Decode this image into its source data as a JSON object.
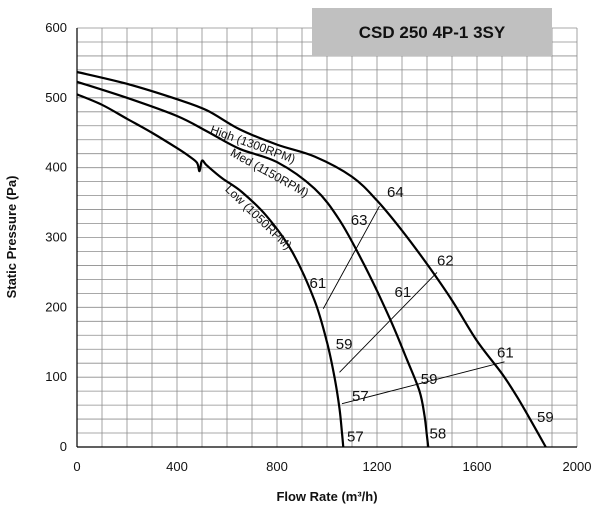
{
  "chart_data": {
    "type": "line",
    "title": "CSD 250 4P-1 3SY",
    "xlabel": "Flow Rate (m³/h)",
    "ylabel": "Static Pressure (Pa)",
    "xlim": [
      0,
      2000
    ],
    "ylim": [
      0,
      600
    ],
    "x_ticks": [
      "0",
      "400",
      "800",
      "1200",
      "1600",
      "2000"
    ],
    "y_ticks": [
      "0",
      "100",
      "200",
      "300",
      "400",
      "500",
      "600"
    ],
    "grid": true,
    "title_box_color": "#c0c0c0",
    "series": [
      {
        "name": "High (1300RPM)",
        "x": [
          0,
          200,
          400,
          520,
          650,
          800,
          950,
          1100,
          1200,
          1300,
          1400,
          1500,
          1600,
          1700,
          1760,
          1820,
          1875
        ],
        "y": [
          537,
          520,
          498,
          482,
          455,
          433,
          416,
          387,
          353,
          310,
          262,
          210,
          152,
          105,
          72,
          35,
          0
        ]
      },
      {
        "name": "Med (1150RPM)",
        "x": [
          0,
          200,
          400,
          520,
          650,
          800,
          950,
          1050,
          1150,
          1250,
          1320,
          1370,
          1390,
          1400,
          1405
        ],
        "y": [
          523,
          500,
          474,
          452,
          427,
          408,
          370,
          325,
          260,
          185,
          125,
          80,
          45,
          15,
          0
        ]
      },
      {
        "name": "Low (1050RPM)",
        "x": [
          0,
          100,
          200,
          300,
          400,
          450,
          480,
          490,
          500,
          520,
          580,
          660,
          760,
          860,
          950,
          1000,
          1030,
          1050,
          1060,
          1065
        ],
        "y": [
          505,
          490,
          470,
          450,
          428,
          416,
          407,
          395,
          410,
          403,
          385,
          365,
          330,
          280,
          210,
          150,
          100,
          55,
          20,
          0
        ]
      }
    ],
    "iso_lines": [
      {
        "x": [
          985,
          1210
        ],
        "y": [
          198,
          345
        ]
      },
      {
        "x": [
          1050,
          1440
        ],
        "y": [
          107,
          250
        ]
      },
      {
        "x": [
          1060,
          1710
        ],
        "y": [
          62,
          122
        ]
      }
    ],
    "annotations": [
      {
        "text": "64",
        "x": 1240,
        "y": 358
      },
      {
        "text": "63",
        "x": 1095,
        "y": 318
      },
      {
        "text": "62",
        "x": 1440,
        "y": 260
      },
      {
        "text": "61",
        "x": 930,
        "y": 228
      },
      {
        "text": "61",
        "x": 1270,
        "y": 215
      },
      {
        "text": "61",
        "x": 1680,
        "y": 128
      },
      {
        "text": "59",
        "x": 1035,
        "y": 140
      },
      {
        "text": "59",
        "x": 1375,
        "y": 90
      },
      {
        "text": "59",
        "x": 1840,
        "y": 36
      },
      {
        "text": "57",
        "x": 1100,
        "y": 66
      },
      {
        "text": "57",
        "x": 1080,
        "y": 8
      },
      {
        "text": "58",
        "x": 1410,
        "y": 12
      }
    ]
  }
}
